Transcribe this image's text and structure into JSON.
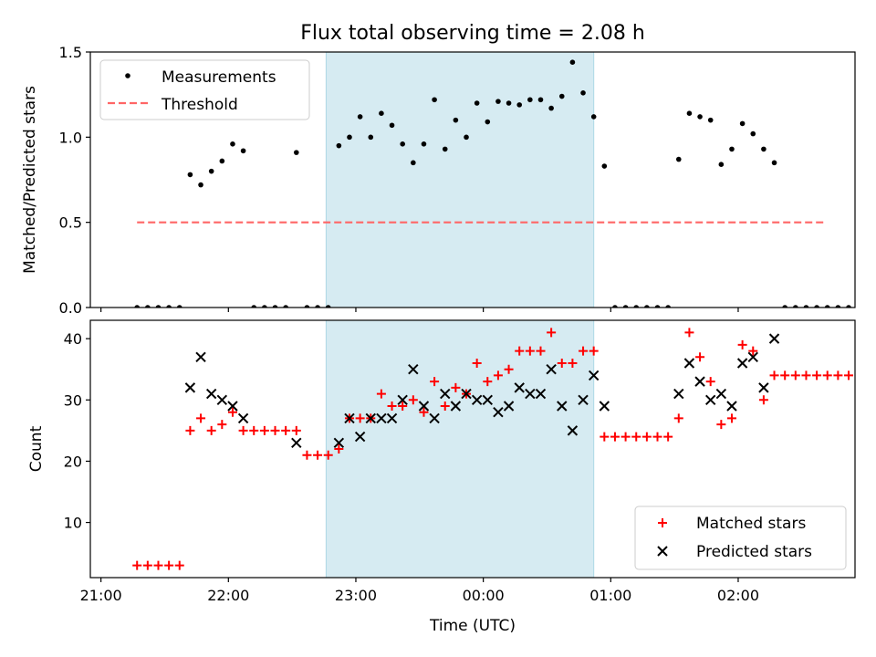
{
  "figure_title": "Flux total observing time = 2.08 h",
  "colors": {
    "highlight": "#add8e6",
    "measurement": "#000000",
    "threshold": "#ff6666",
    "matched": "#ff0000",
    "predicted": "#000000"
  },
  "chart_data": [
    {
      "type": "scatter",
      "ylabel": "Matched/Predicted stars",
      "ylim": [
        0,
        1.5
      ],
      "yticks": [
        "0.0",
        "0.5",
        "1.0",
        "1.5"
      ],
      "yticks_values": [
        0,
        0.5,
        1.0,
        1.5
      ],
      "x_unit": "minutes after 21:00 UTC",
      "xlim": [
        -5,
        355
      ],
      "highlight_span": {
        "start": "22:46",
        "end": "00:52"
      },
      "threshold": {
        "value": 0.5,
        "from": "21:17",
        "to": "02:41"
      },
      "legend": {
        "position": "upper-left",
        "entries": [
          "Measurements",
          "Threshold"
        ]
      },
      "series": [
        {
          "name": "Measurements",
          "points": [
            [
              17,
              0
            ],
            [
              22,
              0
            ],
            [
              27,
              0
            ],
            [
              32,
              0
            ],
            [
              37,
              0
            ],
            [
              42,
              0.78
            ],
            [
              47,
              0.72
            ],
            [
              52,
              0.8
            ],
            [
              57,
              0.86
            ],
            [
              62,
              0.96
            ],
            [
              67,
              0.92
            ],
            [
              72,
              0
            ],
            [
              77,
              0
            ],
            [
              82,
              0
            ],
            [
              87,
              0
            ],
            [
              92,
              0.91
            ],
            [
              97,
              0
            ],
            [
              102,
              0
            ],
            [
              107,
              0
            ],
            [
              112,
              0.95
            ],
            [
              117,
              1.0
            ],
            [
              122,
              1.12
            ],
            [
              127,
              1.0
            ],
            [
              132,
              1.14
            ],
            [
              137,
              1.07
            ],
            [
              142,
              0.96
            ],
            [
              147,
              0.85
            ],
            [
              152,
              0.96
            ],
            [
              157,
              1.22
            ],
            [
              162,
              0.93
            ],
            [
              167,
              1.1
            ],
            [
              172,
              1.0
            ],
            [
              177,
              1.2
            ],
            [
              182,
              1.09
            ],
            [
              187,
              1.21
            ],
            [
              192,
              1.2
            ],
            [
              197,
              1.19
            ],
            [
              202,
              1.22
            ],
            [
              207,
              1.22
            ],
            [
              212,
              1.17
            ],
            [
              217,
              1.24
            ],
            [
              222,
              1.44
            ],
            [
              227,
              1.26
            ],
            [
              232,
              1.12
            ],
            [
              237,
              0.83
            ],
            [
              242,
              0
            ],
            [
              247,
              0
            ],
            [
              252,
              0
            ],
            [
              257,
              0
            ],
            [
              262,
              0
            ],
            [
              267,
              0
            ],
            [
              272,
              0.87
            ],
            [
              277,
              1.14
            ],
            [
              282,
              1.12
            ],
            [
              287,
              1.1
            ],
            [
              292,
              0.84
            ],
            [
              297,
              0.93
            ],
            [
              302,
              1.08
            ],
            [
              307,
              1.02
            ],
            [
              312,
              0.93
            ],
            [
              317,
              0.85
            ],
            [
              322,
              0
            ],
            [
              327,
              0
            ],
            [
              332,
              0
            ],
            [
              337,
              0
            ],
            [
              342,
              0
            ],
            [
              347,
              0
            ],
            [
              352,
              0
            ]
          ]
        }
      ]
    },
    {
      "type": "scatter",
      "xlabel": "Time (UTC)",
      "ylabel": "Count",
      "ylim": [
        1,
        43
      ],
      "yticks": [
        "10",
        "20",
        "30",
        "40"
      ],
      "yticks_values": [
        10,
        20,
        30,
        40
      ],
      "xticks": [
        "21:00",
        "22:00",
        "23:00",
        "00:00",
        "01:00",
        "02:00"
      ],
      "xticks_values": [
        0,
        60,
        120,
        180,
        240,
        300
      ],
      "x_unit": "minutes after 21:00 UTC",
      "xlim": [
        -5,
        355
      ],
      "highlight_span": {
        "start": "22:46",
        "end": "00:52"
      },
      "legend": {
        "position": "lower-right",
        "entries": [
          "Matched stars",
          "Predicted stars"
        ]
      },
      "series": [
        {
          "name": "Matched stars",
          "marker": "plus",
          "points": [
            [
              17,
              3
            ],
            [
              22,
              3
            ],
            [
              27,
              3
            ],
            [
              32,
              3
            ],
            [
              37,
              3
            ],
            [
              42,
              25
            ],
            [
              47,
              27
            ],
            [
              52,
              25
            ],
            [
              57,
              26
            ],
            [
              62,
              28
            ],
            [
              67,
              25
            ],
            [
              72,
              25
            ],
            [
              77,
              25
            ],
            [
              82,
              25
            ],
            [
              87,
              25
            ],
            [
              92,
              25
            ],
            [
              97,
              21
            ],
            [
              102,
              21
            ],
            [
              107,
              21
            ],
            [
              112,
              22
            ],
            [
              117,
              27
            ],
            [
              122,
              27
            ],
            [
              127,
              27
            ],
            [
              132,
              31
            ],
            [
              137,
              29
            ],
            [
              142,
              29
            ],
            [
              147,
              30
            ],
            [
              152,
              28
            ],
            [
              157,
              33
            ],
            [
              162,
              29
            ],
            [
              167,
              32
            ],
            [
              172,
              31
            ],
            [
              177,
              36
            ],
            [
              182,
              33
            ],
            [
              187,
              34
            ],
            [
              192,
              35
            ],
            [
              197,
              38
            ],
            [
              202,
              38
            ],
            [
              207,
              38
            ],
            [
              212,
              41
            ],
            [
              217,
              36
            ],
            [
              222,
              36
            ],
            [
              227,
              38
            ],
            [
              232,
              38
            ],
            [
              237,
              24
            ],
            [
              242,
              24
            ],
            [
              247,
              24
            ],
            [
              252,
              24
            ],
            [
              257,
              24
            ],
            [
              262,
              24
            ],
            [
              267,
              24
            ],
            [
              272,
              27
            ],
            [
              277,
              41
            ],
            [
              282,
              37
            ],
            [
              287,
              33
            ],
            [
              292,
              26
            ],
            [
              297,
              27
            ],
            [
              302,
              39
            ],
            [
              307,
              38
            ],
            [
              312,
              30
            ],
            [
              317,
              34
            ],
            [
              322,
              34
            ],
            [
              327,
              34
            ],
            [
              332,
              34
            ],
            [
              337,
              34
            ],
            [
              342,
              34
            ],
            [
              347,
              34
            ],
            [
              352,
              34
            ]
          ]
        },
        {
          "name": "Predicted stars",
          "marker": "x",
          "points": [
            [
              42,
              32
            ],
            [
              47,
              37
            ],
            [
              52,
              31
            ],
            [
              57,
              30
            ],
            [
              62,
              29
            ],
            [
              67,
              27
            ],
            [
              92,
              23
            ],
            [
              112,
              23
            ],
            [
              117,
              27
            ],
            [
              122,
              24
            ],
            [
              127,
              27
            ],
            [
              132,
              27
            ],
            [
              137,
              27
            ],
            [
              142,
              30
            ],
            [
              147,
              35
            ],
            [
              152,
              29
            ],
            [
              157,
              27
            ],
            [
              162,
              31
            ],
            [
              167,
              29
            ],
            [
              172,
              31
            ],
            [
              177,
              30
            ],
            [
              182,
              30
            ],
            [
              187,
              28
            ],
            [
              192,
              29
            ],
            [
              197,
              32
            ],
            [
              202,
              31
            ],
            [
              207,
              31
            ],
            [
              212,
              35
            ],
            [
              217,
              29
            ],
            [
              222,
              25
            ],
            [
              227,
              30
            ],
            [
              232,
              34
            ],
            [
              237,
              29
            ],
            [
              272,
              31
            ],
            [
              277,
              36
            ],
            [
              282,
              33
            ],
            [
              287,
              30
            ],
            [
              292,
              31
            ],
            [
              297,
              29
            ],
            [
              302,
              36
            ],
            [
              307,
              37
            ],
            [
              312,
              32
            ],
            [
              317,
              40
            ]
          ]
        }
      ]
    }
  ]
}
